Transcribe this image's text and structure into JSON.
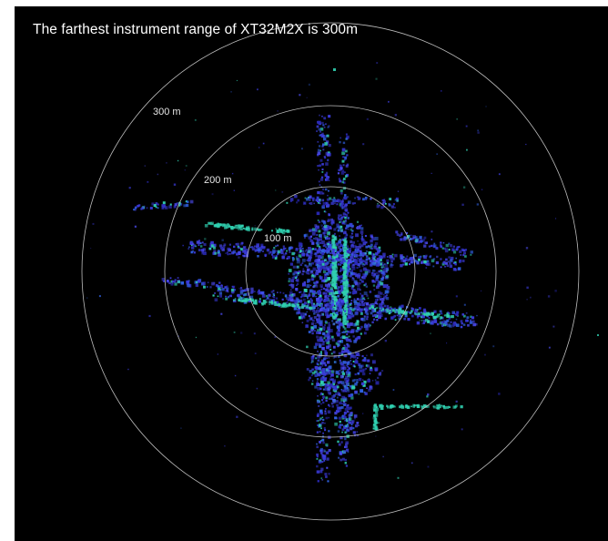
{
  "title": "The farthest instrument range of XT32M2X is 300m",
  "range_rings": [
    {
      "label": "100 m"
    },
    {
      "label": "200 m"
    },
    {
      "label": "300 m"
    }
  ],
  "colors": {
    "background": "#000000",
    "ring": "#bdbdbd",
    "point_primary": "#3a3ad8",
    "point_highlight": "#30d0b0"
  }
}
